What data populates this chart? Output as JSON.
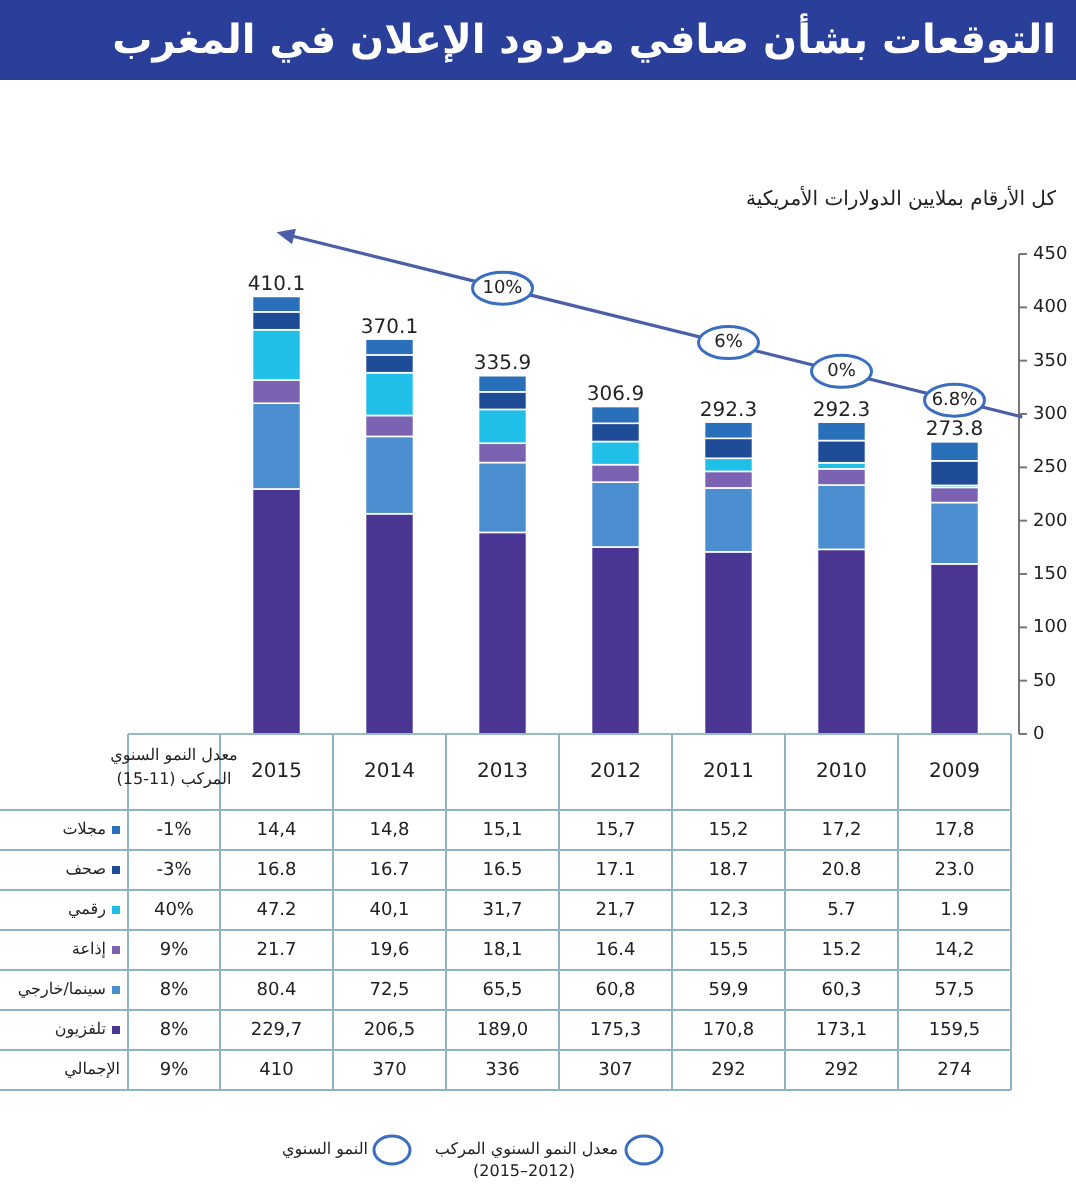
{
  "chart_data": {
    "type": "bar",
    "stacked": true,
    "title": "التوقعات بشأن صافي مردود الإعلان في المغرب",
    "subtitle": "كل الأرقام بملايين الدولارات الأمريكية",
    "categories": [
      "2015",
      "2014",
      "2013",
      "2012",
      "2011",
      "2010",
      "2009"
    ],
    "ylim": [
      0,
      450
    ],
    "yticks": [
      0,
      50,
      100,
      150,
      200,
      250,
      300,
      350,
      400,
      450
    ],
    "series": [
      {
        "name": "تلفزيون",
        "color": "#4a3593",
        "values": [
          229.7,
          206.5,
          189.0,
          175.3,
          170.8,
          173.1,
          159.5
        ],
        "value_labels": [
          "229,7",
          "206,5",
          "189,0",
          "175,3",
          "170,8",
          "173,1",
          "159,5"
        ]
      },
      {
        "name": "سينما/خارجي",
        "color": "#4b8ed0",
        "values": [
          80.4,
          72.5,
          65.5,
          60.8,
          59.9,
          60.3,
          57.5
        ],
        "value_labels": [
          "80.4",
          "72,5",
          "65,5",
          "60,8",
          "59,9",
          "60,3",
          "57,5"
        ]
      },
      {
        "name": "إذاعة",
        "color": "#7b62b3",
        "values": [
          21.7,
          19.6,
          18.1,
          16.4,
          15.5,
          15.2,
          14.2
        ],
        "value_labels": [
          "21.7",
          "19,6",
          "18,1",
          "16.4",
          "15,5",
          "15.2",
          "14,2"
        ]
      },
      {
        "name": "رقمي",
        "color": "#1fbfe8",
        "values": [
          47.2,
          40.1,
          31.7,
          21.7,
          12.3,
          5.7,
          1.9
        ],
        "value_labels": [
          "47.2",
          "40,1",
          "31,7",
          "21,7",
          "12,3",
          "5.7",
          "1.9"
        ]
      },
      {
        "name": "صحف",
        "color": "#1f4c97",
        "values": [
          16.8,
          16.7,
          16.5,
          17.1,
          18.7,
          20.8,
          23.0
        ],
        "value_labels": [
          "16.8",
          "16.7",
          "16.5",
          "17.1",
          "18.7",
          "20.8",
          "23.0"
        ]
      },
      {
        "name": "مجلات",
        "color": "#2a6fba",
        "values": [
          14.4,
          14.8,
          15.1,
          15.7,
          15.2,
          17.2,
          17.8
        ],
        "value_labels": [
          "14,4",
          "14,8",
          "15,1",
          "15,7",
          "15,2",
          "17,2",
          "17,8"
        ]
      }
    ],
    "legend": "bottom left",
    "totals": [
      "410.1",
      "370.1",
      "335.9",
      "306.9",
      "292.3",
      "292.3",
      "273.8"
    ],
    "annotations": [
      "معدل النمو السنوي المركب (11-15)",
      "-1%",
      "-3%",
      "40%",
      "9%",
      "8%",
      "8%",
      "الإجمالي",
      "9%",
      "410",
      "370",
      "336",
      "307",
      "292",
      "292",
      "274",
      "معدل النمو السنوي المركب (2012–2015)",
      "النمو السنوي",
      {
        "text": "10%",
        "x": "2013",
        "y": 418
      },
      {
        "text": "6%",
        "x": "2011",
        "y": 367
      },
      {
        "text": "0%",
        "x": "2010",
        "y": 340
      },
      {
        "text": "6.8%",
        "x": "2009",
        "y": 313
      }
    ]
  }
}
